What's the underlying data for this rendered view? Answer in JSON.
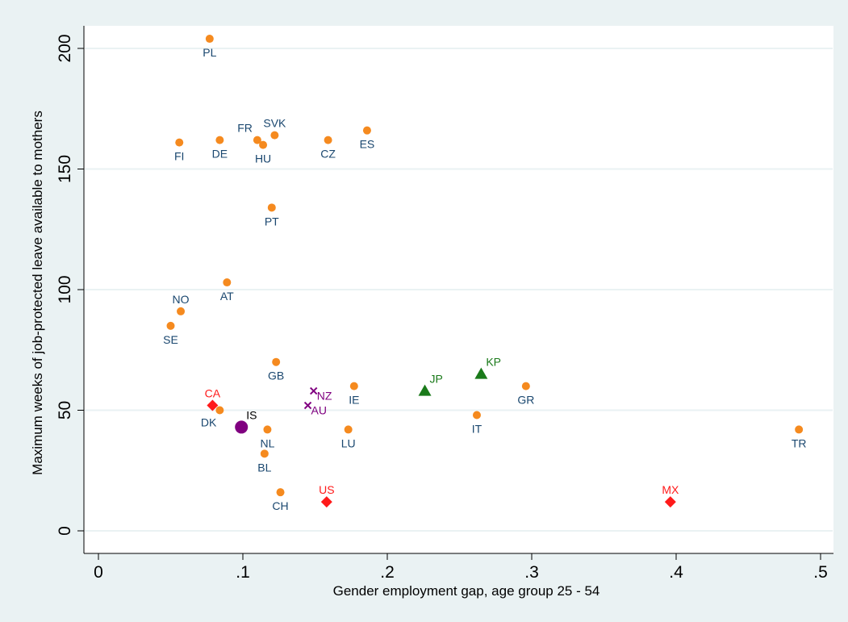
{
  "colors": {
    "outer_bg": "#eaf2f3",
    "plot_bg": "#ffffff",
    "grid": "#eaf2f3",
    "orange": "#f58a1f",
    "red": "#ff1a1a",
    "green": "#1a7a1a",
    "purple": "#800080",
    "label_blue": "#1a476f"
  },
  "chart_data": {
    "type": "scatter",
    "xlabel": "Gender employment gap, age group 25 - 54",
    "ylabel": "Maximum weeks of job-protected leave available to mothers",
    "xlim": [
      0,
      0.5
    ],
    "ylim": [
      0,
      200
    ],
    "xticks": [
      {
        "v": 0,
        "label": "0"
      },
      {
        "v": 0.1,
        "label": ".1"
      },
      {
        "v": 0.2,
        "label": ".2"
      },
      {
        "v": 0.3,
        "label": ".3"
      },
      {
        "v": 0.4,
        "label": ".4"
      },
      {
        "v": 0.5,
        "label": ".5"
      }
    ],
    "yticks": [
      {
        "v": 0,
        "label": "0"
      },
      {
        "v": 50,
        "label": "50"
      },
      {
        "v": 100,
        "label": "100"
      },
      {
        "v": 150,
        "label": "150"
      },
      {
        "v": 200,
        "label": "200"
      }
    ],
    "grid": true,
    "legend": "none",
    "points": [
      {
        "label": "PL",
        "x": 0.077,
        "y": 204,
        "group": "orange",
        "pos": "below"
      },
      {
        "label": "FI",
        "x": 0.056,
        "y": 161,
        "group": "orange",
        "pos": "below"
      },
      {
        "label": "DE",
        "x": 0.084,
        "y": 162,
        "group": "orange",
        "pos": "below"
      },
      {
        "label": "FR",
        "x": 0.11,
        "y": 162,
        "group": "orange",
        "pos": "above-left"
      },
      {
        "label": "HU",
        "x": 0.114,
        "y": 160,
        "group": "orange",
        "pos": "below"
      },
      {
        "label": "SVK",
        "x": 0.122,
        "y": 164,
        "group": "orange",
        "pos": "above"
      },
      {
        "label": "CZ",
        "x": 0.159,
        "y": 162,
        "group": "orange",
        "pos": "below"
      },
      {
        "label": "ES",
        "x": 0.186,
        "y": 166,
        "group": "orange",
        "pos": "below"
      },
      {
        "label": "PT",
        "x": 0.12,
        "y": 134,
        "group": "orange",
        "pos": "below"
      },
      {
        "label": "AT",
        "x": 0.089,
        "y": 103,
        "group": "orange",
        "pos": "below"
      },
      {
        "label": "NO",
        "x": 0.057,
        "y": 91,
        "group": "orange",
        "pos": "above"
      },
      {
        "label": "SE",
        "x": 0.05,
        "y": 85,
        "group": "orange",
        "pos": "below"
      },
      {
        "label": "GB",
        "x": 0.123,
        "y": 70,
        "group": "orange",
        "pos": "below"
      },
      {
        "label": "IE",
        "x": 0.177,
        "y": 60,
        "group": "orange",
        "pos": "below"
      },
      {
        "label": "GR",
        "x": 0.296,
        "y": 60,
        "group": "orange",
        "pos": "below"
      },
      {
        "label": "IT",
        "x": 0.262,
        "y": 48,
        "group": "orange",
        "pos": "below"
      },
      {
        "label": "DK",
        "x": 0.084,
        "y": 50,
        "group": "orange",
        "pos": "below-left"
      },
      {
        "label": "NL",
        "x": 0.117,
        "y": 42,
        "group": "orange",
        "pos": "below"
      },
      {
        "label": "LU",
        "x": 0.173,
        "y": 42,
        "group": "orange",
        "pos": "below"
      },
      {
        "label": "TR",
        "x": 0.485,
        "y": 42,
        "group": "orange",
        "pos": "below"
      },
      {
        "label": "BL",
        "x": 0.115,
        "y": 32,
        "group": "orange",
        "pos": "below"
      },
      {
        "label": "CH",
        "x": 0.126,
        "y": 16,
        "group": "orange",
        "pos": "below"
      },
      {
        "label": "CA",
        "x": 0.079,
        "y": 52,
        "group": "red",
        "pos": "above"
      },
      {
        "label": "US",
        "x": 0.158,
        "y": 12,
        "group": "red",
        "pos": "above"
      },
      {
        "label": "MX",
        "x": 0.396,
        "y": 12,
        "group": "red",
        "pos": "above"
      },
      {
        "label": "JP",
        "x": 0.226,
        "y": 58,
        "group": "green",
        "pos": "above-right"
      },
      {
        "label": "KP",
        "x": 0.265,
        "y": 65,
        "group": "green",
        "pos": "above-right"
      },
      {
        "label": "NZ",
        "x": 0.149,
        "y": 58,
        "group": "purple",
        "pos": "below-right"
      },
      {
        "label": "AU",
        "x": 0.145,
        "y": 52,
        "group": "purple",
        "pos": "below-right"
      },
      {
        "label": "IS",
        "x": 0.099,
        "y": 43,
        "group": "black",
        "pos": "above-right"
      }
    ]
  }
}
